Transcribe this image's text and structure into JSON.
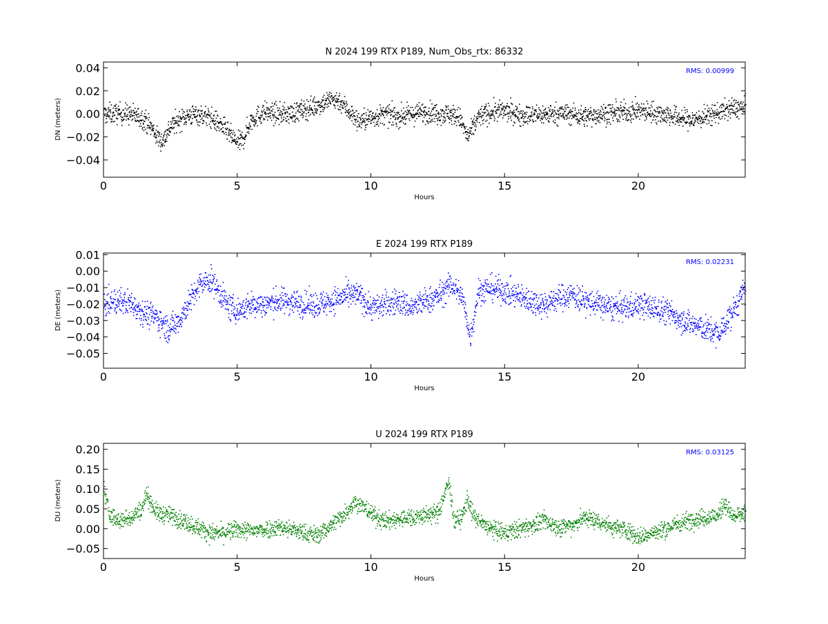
{
  "chart_data": [
    {
      "type": "scatter",
      "title": "N 2024 199 RTX  P189, Num_Obs_rtx: 86332",
      "xlabel": "Hours",
      "ylabel": "DN (meters)",
      "xlim": [
        0,
        24
      ],
      "ylim": [
        -0.055,
        0.045
      ],
      "xticks": [
        0,
        5,
        10,
        15,
        20
      ],
      "xtick_labels": [
        "0",
        "5",
        "10",
        "15",
        "20"
      ],
      "yticks": [
        -0.04,
        -0.02,
        0.0,
        0.02,
        0.04
      ],
      "ytick_labels": [
        "−0.04",
        "−0.02",
        "0.00",
        "0.02",
        "0.04"
      ],
      "annotation": "RMS:  0.00999",
      "series": [
        {
          "color": "#000000",
          "x": [
            0,
            0.5,
            1.0,
            1.5,
            1.8,
            2.0,
            2.2,
            2.5,
            3.0,
            3.5,
            4.0,
            4.4,
            4.8,
            5.0,
            5.2,
            5.5,
            6.0,
            6.5,
            7.0,
            7.5,
            8.0,
            8.5,
            8.8,
            9.2,
            9.5,
            10.0,
            10.5,
            11.0,
            11.5,
            12.0,
            12.5,
            13.0,
            13.3,
            13.6,
            13.8,
            14.0,
            14.5,
            15.0,
            15.5,
            16.0,
            16.5,
            17.0,
            17.5,
            18.0,
            18.5,
            19.0,
            19.5,
            20.0,
            20.5,
            21.0,
            21.5,
            22.0,
            22.5,
            23.0,
            23.5,
            24.0
          ],
          "y": [
            0.0,
            0.001,
            0.0,
            -0.004,
            -0.012,
            -0.02,
            -0.023,
            -0.01,
            -0.002,
            0.0,
            -0.003,
            -0.01,
            -0.02,
            -0.025,
            -0.022,
            -0.005,
            0.002,
            0.0,
            0.001,
            0.004,
            0.008,
            0.013,
            0.012,
            0.002,
            -0.006,
            -0.003,
            0.0,
            -0.002,
            0.0,
            0.002,
            0.001,
            0.0,
            -0.003,
            -0.02,
            -0.012,
            -0.002,
            0.002,
            0.003,
            0.0,
            -0.001,
            0.0,
            0.001,
            0.0,
            -0.002,
            0.0,
            0.001,
            0.002,
            0.003,
            0.002,
            0.0,
            -0.003,
            -0.005,
            -0.002,
            0.002,
            0.005,
            0.006
          ],
          "spread": 0.008
        }
      ]
    },
    {
      "type": "scatter",
      "title": "E 2024 199 RTX  P189",
      "xlabel": "Hours",
      "ylabel": "DE (meters)",
      "xlim": [
        0,
        24
      ],
      "ylim": [
        -0.059,
        0.011
      ],
      "xticks": [
        0,
        5,
        10,
        15,
        20
      ],
      "xtick_labels": [
        "0",
        "5",
        "10",
        "15",
        "20"
      ],
      "yticks": [
        -0.05,
        -0.04,
        -0.03,
        -0.02,
        -0.01,
        0.0,
        0.01
      ],
      "ytick_labels": [
        "−0.05",
        "−0.04",
        "−0.03",
        "−0.02",
        "−0.01",
        "0.00",
        "0.01"
      ],
      "annotation": "RMS:  0.02231",
      "series": [
        {
          "color": "#0000ff",
          "x": [
            0,
            0.5,
            1.0,
            1.5,
            2.0,
            2.4,
            2.8,
            3.2,
            3.6,
            4.0,
            4.3,
            4.7,
            5.0,
            5.5,
            6.0,
            6.5,
            7.0,
            7.5,
            8.0,
            8.5,
            9.0,
            9.5,
            10.0,
            10.5,
            11.0,
            11.5,
            12.0,
            12.5,
            13.0,
            13.4,
            13.7,
            14.0,
            14.5,
            15.0,
            15.5,
            16.0,
            16.5,
            17.0,
            17.5,
            18.0,
            18.5,
            19.0,
            19.5,
            20.0,
            20.5,
            21.0,
            21.5,
            22.0,
            22.5,
            23.0,
            23.5,
            24.0
          ],
          "y": [
            -0.02,
            -0.018,
            -0.019,
            -0.025,
            -0.028,
            -0.035,
            -0.03,
            -0.018,
            -0.008,
            -0.005,
            -0.012,
            -0.022,
            -0.024,
            -0.02,
            -0.02,
            -0.018,
            -0.018,
            -0.02,
            -0.02,
            -0.018,
            -0.015,
            -0.014,
            -0.022,
            -0.02,
            -0.018,
            -0.022,
            -0.018,
            -0.015,
            -0.008,
            -0.015,
            -0.04,
            -0.012,
            -0.01,
            -0.012,
            -0.015,
            -0.018,
            -0.02,
            -0.016,
            -0.014,
            -0.018,
            -0.02,
            -0.022,
            -0.022,
            -0.02,
            -0.022,
            -0.024,
            -0.028,
            -0.032,
            -0.035,
            -0.038,
            -0.025,
            -0.01
          ],
          "spread": 0.007
        }
      ]
    },
    {
      "type": "scatter",
      "title": "U 2024 199 RTX  P189",
      "xlabel": "Hours",
      "ylabel": "DU (meters)",
      "xlim": [
        0,
        24
      ],
      "ylim": [
        -0.075,
        0.215
      ],
      "xticks": [
        0,
        5,
        10,
        15,
        20
      ],
      "xtick_labels": [
        "0",
        "5",
        "10",
        "15",
        "20"
      ],
      "yticks": [
        -0.05,
        0.0,
        0.05,
        0.1,
        0.15,
        0.2
      ],
      "ytick_labels": [
        "−0.05",
        "0.00",
        "0.05",
        "0.10",
        "0.15",
        "0.20"
      ],
      "annotation": "RMS:  0.03125",
      "series": [
        {
          "color": "#008000",
          "x": [
            0,
            0.2,
            0.5,
            1.0,
            1.4,
            1.6,
            1.8,
            2.0,
            2.5,
            3.0,
            3.5,
            4.0,
            4.5,
            5.0,
            5.5,
            6.0,
            6.5,
            7.0,
            7.5,
            8.0,
            8.5,
            9.0,
            9.4,
            9.8,
            10.2,
            10.5,
            11.0,
            11.5,
            12.0,
            12.5,
            12.9,
            13.1,
            13.4,
            13.6,
            13.8,
            14.0,
            14.5,
            15.0,
            15.5,
            16.0,
            16.5,
            17.0,
            17.5,
            18.0,
            18.5,
            19.0,
            19.5,
            20.0,
            20.5,
            21.0,
            21.5,
            22.0,
            22.5,
            23.0,
            23.2,
            23.5,
            24.0
          ],
          "y": [
            0.1,
            0.04,
            0.02,
            0.03,
            0.05,
            0.09,
            0.06,
            0.04,
            0.035,
            0.02,
            0.005,
            -0.01,
            -0.01,
            0.0,
            -0.005,
            0.0,
            0.005,
            0.0,
            -0.01,
            -0.015,
            0.01,
            0.04,
            0.07,
            0.05,
            0.03,
            0.02,
            0.025,
            0.03,
            0.035,
            0.04,
            0.12,
            0.02,
            0.03,
            0.08,
            0.035,
            0.02,
            0.0,
            -0.01,
            0.0,
            0.01,
            0.02,
            0.005,
            0.01,
            0.03,
            0.02,
            0.005,
            0.0,
            -0.02,
            -0.01,
            0.0,
            0.015,
            0.025,
            0.03,
            0.035,
            0.07,
            0.03,
            0.04
          ],
          "spread": 0.02
        }
      ]
    }
  ]
}
